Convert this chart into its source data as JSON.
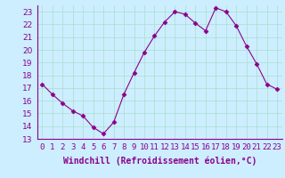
{
  "x": [
    0,
    1,
    2,
    3,
    4,
    5,
    6,
    7,
    8,
    9,
    10,
    11,
    12,
    13,
    14,
    15,
    16,
    17,
    18,
    19,
    20,
    21,
    22,
    23
  ],
  "y": [
    17.3,
    16.5,
    15.8,
    15.2,
    14.8,
    13.9,
    13.4,
    14.3,
    16.5,
    18.2,
    19.8,
    21.1,
    22.2,
    23.0,
    22.8,
    22.1,
    21.5,
    23.3,
    23.0,
    21.9,
    20.3,
    18.9,
    17.3,
    16.9
  ],
  "line_color": "#8b008b",
  "marker": "D",
  "marker_size": 2.5,
  "bg_color": "#cceeff",
  "grid_color": "#aaddcc",
  "xlabel": "Windchill (Refroidissement éolien,°C)",
  "xlabel_fontsize": 7,
  "tick_fontsize": 6.5,
  "ylim": [
    13,
    23.5
  ],
  "xlim": [
    -0.5,
    23.5
  ],
  "yticks": [
    13,
    14,
    15,
    16,
    17,
    18,
    19,
    20,
    21,
    22,
    23
  ],
  "xtick_labels": [
    "0",
    "1",
    "2",
    "3",
    "4",
    "5",
    "6",
    "7",
    "8",
    "9",
    "10",
    "11",
    "12",
    "13",
    "14",
    "15",
    "16",
    "17",
    "18",
    "19",
    "20",
    "21",
    "22",
    "23"
  ]
}
